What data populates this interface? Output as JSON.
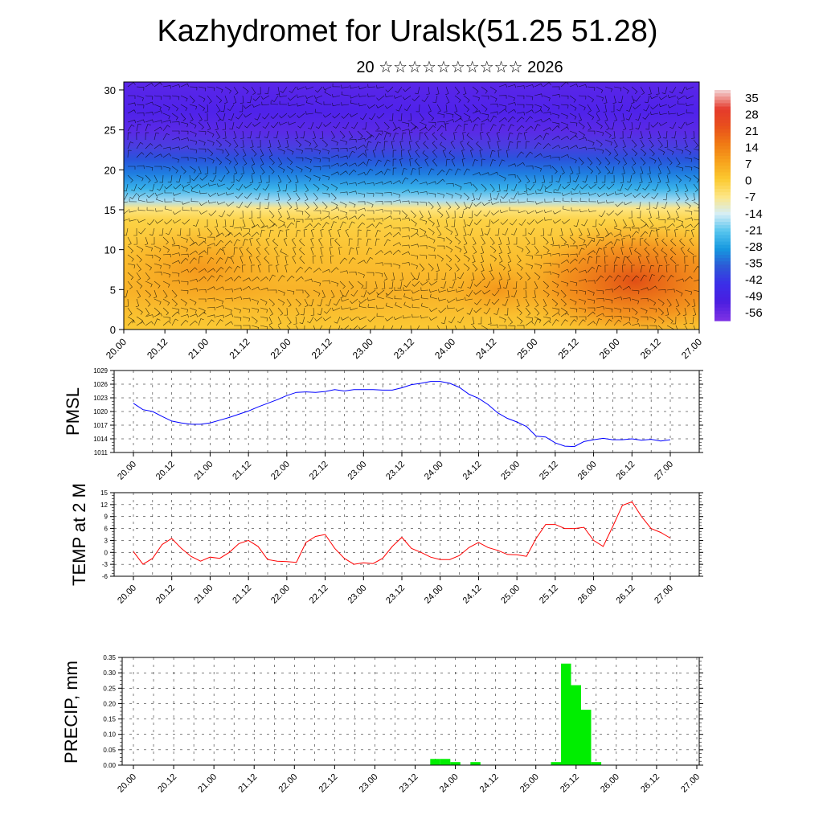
{
  "title": "Kazhydromet for Uralsk(51.25 51.28)",
  "subtitle": "20 ☆☆☆☆☆☆☆☆☆☆ 2026",
  "colors": {
    "pmsl_line": "#0000ff",
    "temp_line": "#ff0000",
    "precip_bar": "#00ee00",
    "wind_barb": "#000000"
  },
  "chart_data": [
    {
      "type": "heatmap",
      "name": "cross-section",
      "ylim": [
        0,
        31
      ],
      "y_ticks": [
        0,
        5,
        10,
        15,
        20,
        25,
        30
      ],
      "x_tick_labels": [
        "20.00",
        "20.12",
        "21.00",
        "21.12",
        "22.00",
        "22.12",
        "23.00",
        "23.12",
        "24.00",
        "24.12",
        "25.00",
        "25.12",
        "26.00",
        "26.12",
        "27.00"
      ],
      "colorbar_labels": [
        "35",
        "28",
        "21",
        "14",
        "7",
        "0",
        "-7",
        "-14",
        "-21",
        "-28",
        "-35",
        "-42",
        "-49",
        "-56"
      ],
      "colorbar_colors": [
        "#f2c8c8",
        "#e53a2c",
        "#e8501c",
        "#f07a14",
        "#f7a21c",
        "#fbc930",
        "#fde685",
        "#d6eef6",
        "#55c4ee",
        "#1698df",
        "#2d58d6",
        "#3b2ee8",
        "#4a1ee0",
        "#7a30e4"
      ],
      "overlay": "wind barbs"
    },
    {
      "type": "line",
      "name": "PMSL",
      "ylabel": "PMSL",
      "ylim": [
        1011,
        1029
      ],
      "y_ticks": [
        1011,
        1014,
        1017,
        1020,
        1023,
        1026,
        1029
      ],
      "x_tick_labels": [
        "20.00",
        "20.12",
        "21.00",
        "21.12",
        "22.00",
        "22.12",
        "23.00",
        "23.12",
        "24.00",
        "24.12",
        "25.00",
        "25.12",
        "26.00",
        "26.12",
        "27.00"
      ],
      "x": [
        0,
        0.25,
        0.5,
        0.75,
        1,
        1.25,
        1.5,
        1.75,
        2,
        2.25,
        2.5,
        2.75,
        3,
        3.25,
        3.5,
        3.75,
        4,
        4.25,
        4.5,
        4.75,
        5,
        5.25,
        5.5,
        5.75,
        6,
        6.25,
        6.5,
        6.75,
        7,
        7.25,
        7.5,
        7.75,
        8,
        8.25,
        8.5,
        8.75,
        9,
        9.25,
        9.5,
        9.75,
        10,
        10.25,
        10.5,
        10.75,
        11,
        11.25,
        11.5,
        11.75,
        12,
        12.25,
        12.5,
        12.75,
        13,
        13.25,
        13.5,
        13.75,
        14
      ],
      "values": [
        1021.8,
        1020.4,
        1020.0,
        1018.9,
        1017.9,
        1017.5,
        1017.2,
        1017.2,
        1017.5,
        1018.1,
        1018.7,
        1019.4,
        1020.1,
        1021.0,
        1021.8,
        1022.6,
        1023.5,
        1024.2,
        1024.3,
        1024.2,
        1024.4,
        1024.8,
        1024.5,
        1024.8,
        1024.8,
        1024.8,
        1024.7,
        1024.7,
        1025.2,
        1025.9,
        1026.2,
        1026.6,
        1026.6,
        1026.2,
        1025.3,
        1023.8,
        1022.9,
        1021.5,
        1019.7,
        1018.5,
        1017.7,
        1016.7,
        1014.6,
        1014.4,
        1013.1,
        1012.4,
        1012.3,
        1013.4,
        1013.8,
        1014.1,
        1013.8,
        1013.8,
        1014.0,
        1013.7,
        1013.9,
        1013.5,
        1013.8
      ]
    },
    {
      "type": "line",
      "name": "TEMP at 2 M",
      "ylabel": "TEMP at 2 M",
      "ylim": [
        -6,
        15
      ],
      "y_ticks": [
        -6,
        -3,
        0,
        3,
        6,
        9,
        12,
        15
      ],
      "x_tick_labels": [
        "20.00",
        "20.12",
        "21.00",
        "21.12",
        "22.00",
        "22.12",
        "23.00",
        "23.12",
        "24.00",
        "24.12",
        "25.00",
        "25.12",
        "26.00",
        "26.12",
        "27.00"
      ],
      "x": [
        0,
        0.25,
        0.5,
        0.75,
        1,
        1.25,
        1.5,
        1.75,
        2,
        2.25,
        2.5,
        2.75,
        3,
        3.25,
        3.5,
        3.75,
        4,
        4.25,
        4.5,
        4.75,
        5,
        5.25,
        5.5,
        5.75,
        6,
        6.25,
        6.5,
        6.75,
        7,
        7.25,
        7.5,
        7.75,
        8,
        8.25,
        8.5,
        8.75,
        9,
        9.25,
        9.5,
        9.75,
        10,
        10.25,
        10.5,
        10.75,
        11,
        11.25,
        11.5,
        11.75,
        12,
        12.25,
        12.5,
        12.75,
        13,
        13.25,
        13.5,
        13.75,
        14
      ],
      "values": [
        0.2,
        -3.0,
        -1.5,
        2.0,
        3.5,
        1.0,
        -1.0,
        -2.2,
        -1.2,
        -1.5,
        0.0,
        2.2,
        3.0,
        1.5,
        -1.8,
        -2.2,
        -2.3,
        -2.5,
        2.5,
        4.0,
        4.5,
        1.0,
        -1.5,
        -3.0,
        -2.6,
        -2.8,
        -1.5,
        1.5,
        3.8,
        1.0,
        0.0,
        -1.2,
        -1.8,
        -1.8,
        -0.8,
        1.2,
        2.5,
        1.2,
        0.5,
        -0.5,
        -0.6,
        -1.0,
        3.5,
        7.0,
        7.0,
        6.0,
        6.0,
        6.3,
        3.0,
        1.5,
        6.5,
        11.8,
        12.7,
        9.0,
        6.0,
        5.0,
        3.6
      ]
    },
    {
      "type": "bar",
      "name": "PRECIP, mm",
      "ylabel": "PRECIP, mm",
      "ylim": [
        0,
        0.35
      ],
      "y_ticks": [
        0.0,
        0.05,
        0.1,
        0.15,
        0.2,
        0.25,
        0.3,
        0.35
      ],
      "y_tick_labels": [
        "0.00",
        "0.05",
        "0.10",
        "0.15",
        "0.20",
        "0.25",
        "0.30",
        "0.35"
      ],
      "x_tick_labels": [
        "20.00",
        "20.12",
        "21.00",
        "21.12",
        "22.00",
        "22.12",
        "23.00",
        "23.12",
        "24.00",
        "24.12",
        "25.00",
        "25.12",
        "26.00",
        "26.12",
        "27.00"
      ],
      "bar_width": 0.25,
      "x": [
        7.5,
        7.75,
        8.0,
        8.5,
        10.5,
        10.75,
        11.0,
        11.25,
        11.5
      ],
      "values": [
        0.02,
        0.02,
        0.01,
        0.01,
        0.01,
        0.33,
        0.26,
        0.18,
        0.01
      ]
    }
  ]
}
